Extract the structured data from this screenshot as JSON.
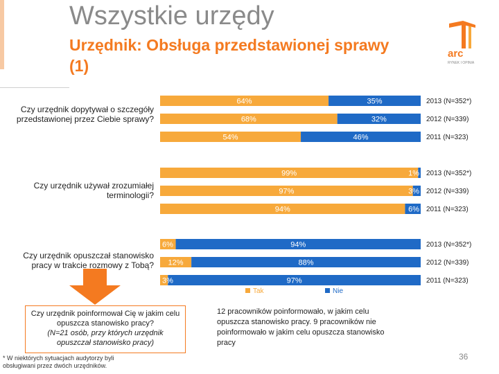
{
  "header": {
    "title": "Wszystkie urzędy",
    "subtitle": "Urzędnik: Obsługa przedstawionej sprawy (1)",
    "logo_text": "arc",
    "logo_subtext": "RYNEK I OPINIA"
  },
  "colors": {
    "tak": "#f7a93b",
    "nie": "#1f6ac6",
    "accent": "#f47a20",
    "gray_text": "#8a8a8a"
  },
  "chart_data": {
    "type": "bar",
    "orientation": "horizontal-stacked-100",
    "legend": [
      "Tak",
      "Nie"
    ],
    "groups": [
      {
        "question": "Czy urzędnik dopytywał o szczegóły przedstawionej przez Ciebie sprawy?",
        "rows": [
          {
            "year": "2013 (N=352*)",
            "tak": 64,
            "nie": 35,
            "tak_label": "64%",
            "nie_label": "35%"
          },
          {
            "year": "2012 (N=339)",
            "tak": 68,
            "nie": 32,
            "tak_label": "68%",
            "nie_label": "32%"
          },
          {
            "year": "2011 (N=323)",
            "tak": 54,
            "nie": 46,
            "tak_label": "54%",
            "nie_label": "46%"
          }
        ]
      },
      {
        "question": "Czy urzędnik używał zrozumiałej terminologii?",
        "rows": [
          {
            "year": "2013 (N=352*)",
            "tak": 99,
            "nie": 1,
            "tak_label": "99%",
            "nie_label": "1%"
          },
          {
            "year": "2012 (N=339)",
            "tak": 97,
            "nie": 3,
            "tak_label": "97%",
            "nie_label": "3%"
          },
          {
            "year": "2011 (N=323)",
            "tak": 94,
            "nie": 6,
            "tak_label": "94%",
            "nie_label": "6%"
          }
        ]
      },
      {
        "question": "Czy urzędnik opuszczał stanowisko pracy w trakcie rozmowy z Tobą?",
        "rows": [
          {
            "year": "2013 (N=352*)",
            "tak": 6,
            "nie": 94,
            "tak_label": "6%",
            "nie_label": "94%"
          },
          {
            "year": "2012 (N=339)",
            "tak": 12,
            "nie": 88,
            "tak_label": "12%",
            "nie_label": "88%"
          },
          {
            "year": "2011 (N=323)",
            "tak": 3,
            "nie": 97,
            "tak_label": "3%",
            "nie_label": "97%"
          }
        ]
      }
    ]
  },
  "callouts": {
    "left_line1": "Czy urzędnik poinformował Cię w jakim celu opuszcza stanowisko pracy?",
    "left_line2": "(N=21 osób, przy których urzędnik opuszczał stanowisko pracy)",
    "right_text": "12 pracowników poinformowało, w jakim celu opuszcza stanowisko pracy. 9 pracowników nie poinformowało w jakim celu opuszcza stanowisko pracy"
  },
  "footnote": "* W niektórych sytuacjach audytorzy byli obsługiwani przez dwóch urzędników.",
  "page_number": "36"
}
